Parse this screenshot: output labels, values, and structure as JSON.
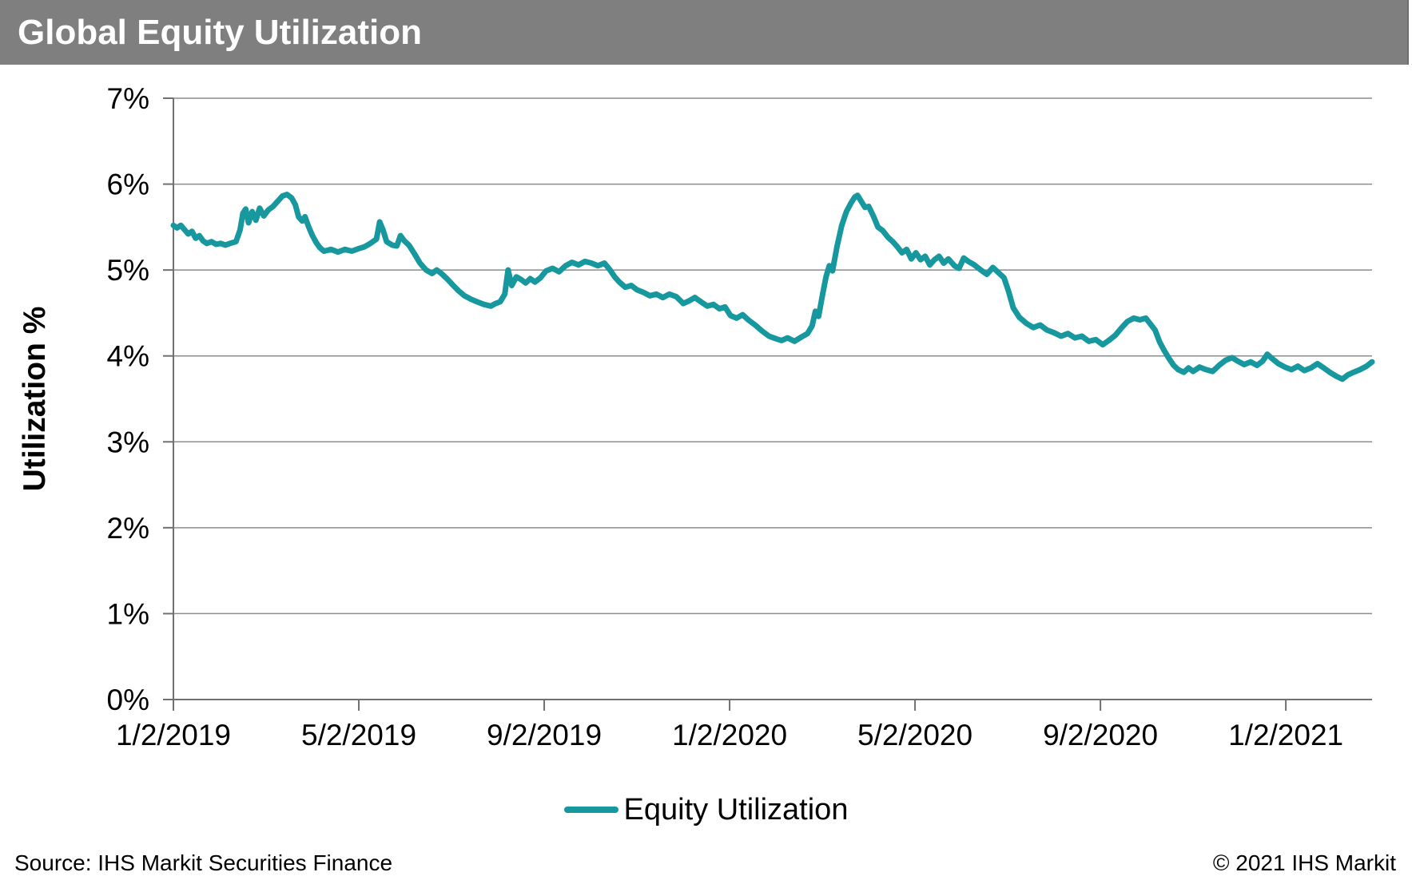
{
  "title_bar": {
    "title": "Global Equity Utilization",
    "bg_color": "#7F7F7F",
    "text_color": "#FFFFFF"
  },
  "legend": {
    "label": "Equity Utilization",
    "swatch_color": "#17989E"
  },
  "footer": {
    "source": "Source: IHS Markit Securities Finance",
    "copyright": "© 2021 IHS Markit"
  },
  "chart_data": {
    "type": "line",
    "title": "Global Equity Utilization",
    "xlabel": "",
    "ylabel": "Utilization %",
    "ylim": [
      0,
      7
    ],
    "grid": true,
    "legend_position": "bottom",
    "line_color": "#17989E",
    "grid_color": "#8C8C8C",
    "axis_color": "#707070",
    "y_ticks": [
      {
        "value": 0,
        "label": "0%"
      },
      {
        "value": 1,
        "label": "1%"
      },
      {
        "value": 2,
        "label": "2%"
      },
      {
        "value": 3,
        "label": "3%"
      },
      {
        "value": 4,
        "label": "4%"
      },
      {
        "value": 5,
        "label": "5%"
      },
      {
        "value": 6,
        "label": "6%"
      },
      {
        "value": 7,
        "label": "7%"
      }
    ],
    "x_unit": "months since 1/2/2019",
    "x_range": [
      0,
      25.86
    ],
    "x_ticks": [
      {
        "month": 0,
        "label": "1/2/2019"
      },
      {
        "month": 4,
        "label": "5/2/2019"
      },
      {
        "month": 8,
        "label": "9/2/2019"
      },
      {
        "month": 12,
        "label": "1/2/2020"
      },
      {
        "month": 16,
        "label": "5/2/2020"
      },
      {
        "month": 20,
        "label": "9/2/2020"
      },
      {
        "month": 24,
        "label": "1/2/2021"
      }
    ],
    "series": [
      {
        "name": "Equity Utilization",
        "points": [
          [
            0.0,
            5.52
          ],
          [
            0.08,
            5.49
          ],
          [
            0.16,
            5.52
          ],
          [
            0.24,
            5.47
          ],
          [
            0.32,
            5.42
          ],
          [
            0.4,
            5.45
          ],
          [
            0.48,
            5.37
          ],
          [
            0.56,
            5.4
          ],
          [
            0.64,
            5.34
          ],
          [
            0.72,
            5.31
          ],
          [
            0.82,
            5.33
          ],
          [
            0.92,
            5.3
          ],
          [
            1.02,
            5.31
          ],
          [
            1.12,
            5.29
          ],
          [
            1.22,
            5.31
          ],
          [
            1.35,
            5.33
          ],
          [
            1.44,
            5.47
          ],
          [
            1.5,
            5.66
          ],
          [
            1.56,
            5.71
          ],
          [
            1.62,
            5.55
          ],
          [
            1.7,
            5.68
          ],
          [
            1.78,
            5.58
          ],
          [
            1.86,
            5.72
          ],
          [
            1.95,
            5.63
          ],
          [
            2.05,
            5.7
          ],
          [
            2.15,
            5.74
          ],
          [
            2.25,
            5.8
          ],
          [
            2.35,
            5.86
          ],
          [
            2.45,
            5.88
          ],
          [
            2.55,
            5.84
          ],
          [
            2.63,
            5.76
          ],
          [
            2.7,
            5.62
          ],
          [
            2.78,
            5.57
          ],
          [
            2.84,
            5.62
          ],
          [
            2.92,
            5.5
          ],
          [
            3.0,
            5.4
          ],
          [
            3.08,
            5.32
          ],
          [
            3.16,
            5.26
          ],
          [
            3.25,
            5.22
          ],
          [
            3.4,
            5.24
          ],
          [
            3.55,
            5.21
          ],
          [
            3.7,
            5.24
          ],
          [
            3.85,
            5.22
          ],
          [
            4.0,
            5.25
          ],
          [
            4.12,
            5.27
          ],
          [
            4.25,
            5.31
          ],
          [
            4.38,
            5.36
          ],
          [
            4.45,
            5.56
          ],
          [
            4.52,
            5.47
          ],
          [
            4.6,
            5.33
          ],
          [
            4.72,
            5.29
          ],
          [
            4.82,
            5.28
          ],
          [
            4.9,
            5.4
          ],
          [
            4.98,
            5.34
          ],
          [
            5.08,
            5.29
          ],
          [
            5.2,
            5.19
          ],
          [
            5.32,
            5.08
          ],
          [
            5.45,
            5.0
          ],
          [
            5.58,
            4.96
          ],
          [
            5.68,
            5.0
          ],
          [
            5.78,
            4.96
          ],
          [
            5.9,
            4.9
          ],
          [
            6.02,
            4.83
          ],
          [
            6.15,
            4.76
          ],
          [
            6.28,
            4.7
          ],
          [
            6.42,
            4.66
          ],
          [
            6.55,
            4.63
          ],
          [
            6.7,
            4.6
          ],
          [
            6.85,
            4.58
          ],
          [
            6.95,
            4.61
          ],
          [
            7.05,
            4.63
          ],
          [
            7.15,
            4.72
          ],
          [
            7.22,
            5.0
          ],
          [
            7.3,
            4.82
          ],
          [
            7.4,
            4.92
          ],
          [
            7.5,
            4.89
          ],
          [
            7.6,
            4.85
          ],
          [
            7.7,
            4.9
          ],
          [
            7.8,
            4.86
          ],
          [
            7.92,
            4.91
          ],
          [
            8.04,
            4.99
          ],
          [
            8.18,
            5.02
          ],
          [
            8.32,
            4.98
          ],
          [
            8.46,
            5.05
          ],
          [
            8.6,
            5.09
          ],
          [
            8.74,
            5.06
          ],
          [
            8.88,
            5.1
          ],
          [
            9.02,
            5.08
          ],
          [
            9.16,
            5.05
          ],
          [
            9.3,
            5.08
          ],
          [
            9.42,
            5.0
          ],
          [
            9.52,
            4.92
          ],
          [
            9.62,
            4.86
          ],
          [
            9.75,
            4.8
          ],
          [
            9.88,
            4.82
          ],
          [
            10.0,
            4.77
          ],
          [
            10.14,
            4.74
          ],
          [
            10.28,
            4.7
          ],
          [
            10.42,
            4.72
          ],
          [
            10.56,
            4.68
          ],
          [
            10.7,
            4.72
          ],
          [
            10.85,
            4.69
          ],
          [
            11.0,
            4.61
          ],
          [
            11.12,
            4.64
          ],
          [
            11.25,
            4.68
          ],
          [
            11.38,
            4.63
          ],
          [
            11.52,
            4.58
          ],
          [
            11.65,
            4.6
          ],
          [
            11.78,
            4.55
          ],
          [
            11.9,
            4.57
          ],
          [
            12.02,
            4.47
          ],
          [
            12.15,
            4.44
          ],
          [
            12.28,
            4.48
          ],
          [
            12.4,
            4.42
          ],
          [
            12.55,
            4.36
          ],
          [
            12.7,
            4.29
          ],
          [
            12.85,
            4.23
          ],
          [
            13.0,
            4.2
          ],
          [
            13.12,
            4.18
          ],
          [
            13.25,
            4.21
          ],
          [
            13.4,
            4.17
          ],
          [
            13.55,
            4.22
          ],
          [
            13.68,
            4.26
          ],
          [
            13.78,
            4.35
          ],
          [
            13.85,
            4.52
          ],
          [
            13.92,
            4.46
          ],
          [
            14.0,
            4.7
          ],
          [
            14.08,
            4.92
          ],
          [
            14.15,
            5.05
          ],
          [
            14.22,
            4.99
          ],
          [
            14.32,
            5.28
          ],
          [
            14.42,
            5.52
          ],
          [
            14.52,
            5.68
          ],
          [
            14.62,
            5.78
          ],
          [
            14.7,
            5.85
          ],
          [
            14.76,
            5.87
          ],
          [
            14.84,
            5.8
          ],
          [
            14.92,
            5.73
          ],
          [
            15.0,
            5.74
          ],
          [
            15.1,
            5.63
          ],
          [
            15.2,
            5.5
          ],
          [
            15.3,
            5.46
          ],
          [
            15.42,
            5.38
          ],
          [
            15.52,
            5.33
          ],
          [
            15.62,
            5.27
          ],
          [
            15.72,
            5.2
          ],
          [
            15.82,
            5.24
          ],
          [
            15.92,
            5.13
          ],
          [
            16.02,
            5.2
          ],
          [
            16.12,
            5.12
          ],
          [
            16.22,
            5.16
          ],
          [
            16.32,
            5.06
          ],
          [
            16.42,
            5.12
          ],
          [
            16.52,
            5.16
          ],
          [
            16.62,
            5.08
          ],
          [
            16.72,
            5.13
          ],
          [
            16.85,
            5.05
          ],
          [
            16.95,
            5.02
          ],
          [
            17.05,
            5.14
          ],
          [
            17.15,
            5.1
          ],
          [
            17.28,
            5.06
          ],
          [
            17.42,
            5.0
          ],
          [
            17.55,
            4.95
          ],
          [
            17.68,
            5.03
          ],
          [
            17.8,
            4.97
          ],
          [
            17.92,
            4.91
          ],
          [
            18.02,
            4.75
          ],
          [
            18.12,
            4.56
          ],
          [
            18.25,
            4.45
          ],
          [
            18.4,
            4.38
          ],
          [
            18.55,
            4.33
          ],
          [
            18.7,
            4.36
          ],
          [
            18.85,
            4.3
          ],
          [
            19.0,
            4.27
          ],
          [
            19.15,
            4.23
          ],
          [
            19.3,
            4.26
          ],
          [
            19.45,
            4.21
          ],
          [
            19.6,
            4.23
          ],
          [
            19.75,
            4.17
          ],
          [
            19.9,
            4.19
          ],
          [
            20.05,
            4.13
          ],
          [
            20.18,
            4.18
          ],
          [
            20.32,
            4.24
          ],
          [
            20.46,
            4.33
          ],
          [
            20.58,
            4.4
          ],
          [
            20.72,
            4.44
          ],
          [
            20.85,
            4.42
          ],
          [
            20.98,
            4.44
          ],
          [
            21.08,
            4.37
          ],
          [
            21.18,
            4.3
          ],
          [
            21.28,
            4.16
          ],
          [
            21.38,
            4.06
          ],
          [
            21.48,
            3.97
          ],
          [
            21.58,
            3.89
          ],
          [
            21.68,
            3.84
          ],
          [
            21.8,
            3.81
          ],
          [
            21.9,
            3.86
          ],
          [
            22.0,
            3.82
          ],
          [
            22.14,
            3.87
          ],
          [
            22.28,
            3.84
          ],
          [
            22.42,
            3.82
          ],
          [
            22.56,
            3.89
          ],
          [
            22.7,
            3.95
          ],
          [
            22.84,
            3.98
          ],
          [
            22.96,
            3.94
          ],
          [
            23.1,
            3.9
          ],
          [
            23.24,
            3.93
          ],
          [
            23.38,
            3.89
          ],
          [
            23.5,
            3.94
          ],
          [
            23.6,
            4.02
          ],
          [
            23.7,
            3.97
          ],
          [
            23.84,
            3.91
          ],
          [
            23.98,
            3.87
          ],
          [
            24.12,
            3.84
          ],
          [
            24.26,
            3.88
          ],
          [
            24.4,
            3.83
          ],
          [
            24.54,
            3.86
          ],
          [
            24.68,
            3.91
          ],
          [
            24.82,
            3.86
          ],
          [
            24.95,
            3.81
          ],
          [
            25.1,
            3.76
          ],
          [
            25.22,
            3.73
          ],
          [
            25.34,
            3.78
          ],
          [
            25.46,
            3.81
          ],
          [
            25.6,
            3.84
          ],
          [
            25.74,
            3.88
          ],
          [
            25.86,
            3.93
          ]
        ]
      }
    ]
  }
}
